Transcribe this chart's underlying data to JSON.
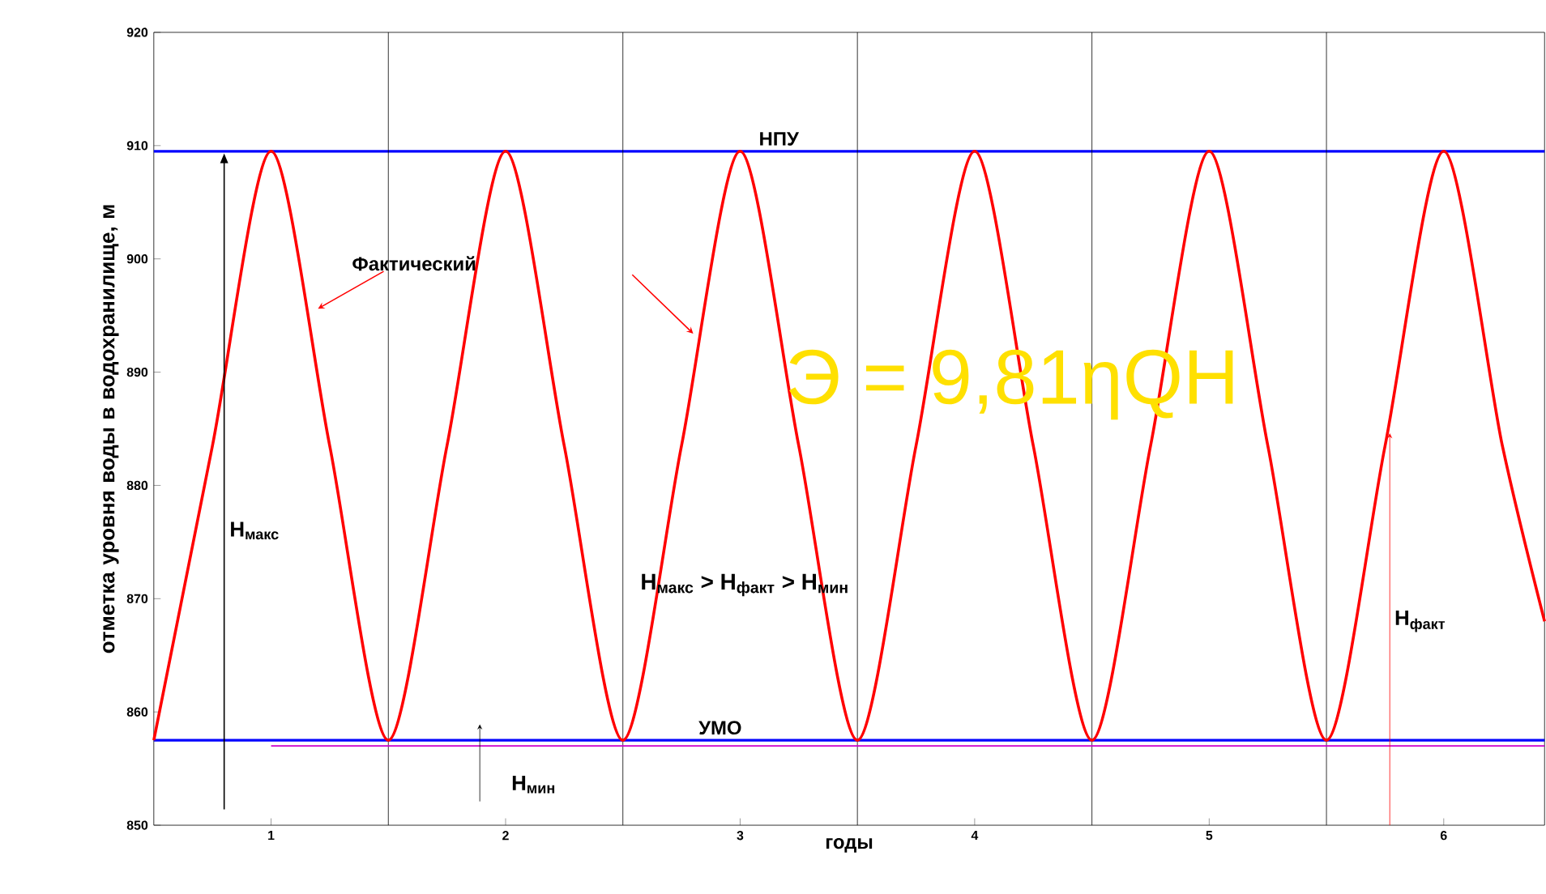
{
  "chart_data": {
    "type": "line",
    "xlabel": "годы",
    "ylabel": "отметка уровня воды в водохранилище, м",
    "x": [
      0.5,
      0.75,
      1,
      1.25,
      1.5,
      1.75,
      2,
      2.25,
      2.5,
      2.75,
      3,
      3.25,
      3.5,
      3.75,
      4,
      4.25,
      4.5,
      4.75,
      5,
      5.25,
      5.5,
      5.75,
      6,
      6.25,
      6.43
    ],
    "series": [
      {
        "name": "Фактический",
        "color": "#ff0000",
        "values": [
          857.5,
          883.5,
          909.5,
          883.5,
          857.5,
          883.5,
          909.5,
          883.5,
          857.5,
          883.5,
          909.5,
          883.5,
          857.5,
          883.5,
          909.5,
          883.5,
          857.5,
          883.5,
          909.5,
          883.5,
          857.5,
          883.5,
          909.5,
          883.5,
          868
        ]
      },
      {
        "color": "#cc00cc",
        "x": [
          1,
          6.43
        ],
        "values": [
          857,
          857
        ]
      }
    ],
    "xlim": [
      0.5,
      6.43
    ],
    "ylim": [
      850,
      920
    ],
    "xticks": [
      1,
      2,
      3,
      4,
      5,
      6
    ],
    "yticks": [
      850,
      860,
      870,
      880,
      890,
      900,
      910,
      920
    ],
    "ref_lines": [
      {
        "axis": "y",
        "value": 909.5,
        "label": "НПУ",
        "color": "#0000ff"
      },
      {
        "axis": "y",
        "value": 857.5,
        "label": "УМО",
        "color": "#0000ff"
      },
      {
        "axis": "x",
        "value": 1.5,
        "color": "#000000"
      },
      {
        "axis": "x",
        "value": 2.5,
        "color": "#000000"
      },
      {
        "axis": "x",
        "value": 3.5,
        "color": "#000000"
      },
      {
        "axis": "x",
        "value": 4.5,
        "color": "#000000"
      },
      {
        "axis": "x",
        "value": 5.5,
        "color": "#000000"
      }
    ],
    "annotations": [
      "Э = 9,81ηQH",
      "Н$_{макс}$ > Н$_{факт}$ > Н$_{мин}$",
      "Н$_{макс}$",
      "Н$_{мин}$",
      "Н$_{факт}$"
    ],
    "grid": false,
    "legend": false,
    "marker": "none",
    "line_style": "solid"
  }
}
